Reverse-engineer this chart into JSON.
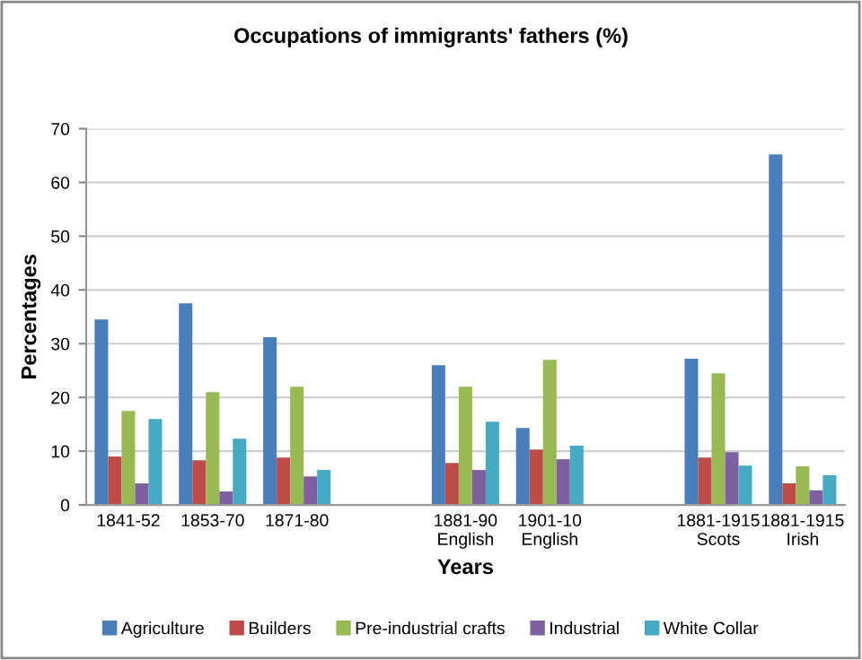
{
  "chart_data": {
    "type": "bar",
    "title": "Occupations of immigrants' fathers (%)",
    "xlabel": "Years",
    "ylabel": "Percentages",
    "categories": [
      "1841-52",
      "1853-70",
      "1871-80",
      null,
      "1881-90\nEnglish",
      "1901-10\nEnglish",
      null,
      "1881-1915\nScots",
      "1881-1915\nIrish"
    ],
    "series": [
      {
        "name": "Agriculture",
        "color": "#4a7ebb",
        "values": [
          34.5,
          37.5,
          31.2,
          null,
          26,
          14.3,
          null,
          27.2,
          65.2
        ]
      },
      {
        "name": "Builders",
        "color": "#be4b48",
        "values": [
          9,
          8.3,
          8.8,
          null,
          7.8,
          10.3,
          null,
          8.8,
          4
        ]
      },
      {
        "name": "Pre-industrial crafts",
        "color": "#98b954",
        "values": [
          17.5,
          21,
          22,
          null,
          22,
          27,
          null,
          24.5,
          7.2
        ]
      },
      {
        "name": "Industrial",
        "color": "#7d60a0",
        "values": [
          4,
          2.5,
          5.3,
          null,
          6.5,
          8.5,
          null,
          9.8,
          2.7
        ]
      },
      {
        "name": "White Collar",
        "color": "#46aac5",
        "values": [
          16,
          12.3,
          6.5,
          null,
          15.5,
          11,
          null,
          7.3,
          5.5
        ]
      }
    ],
    "ylim": [
      0,
      70
    ],
    "yticks": [
      0,
      10,
      20,
      30,
      40,
      50,
      60,
      70
    ],
    "grid": "y",
    "legend": "bottom"
  }
}
